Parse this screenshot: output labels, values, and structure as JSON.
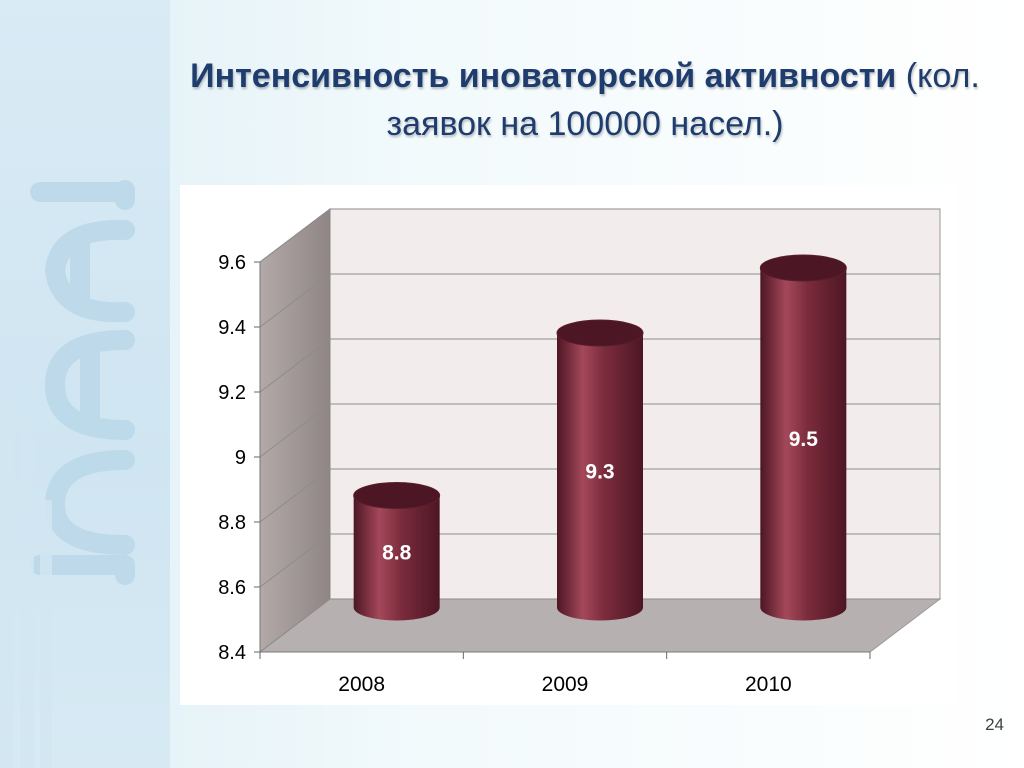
{
  "slide": {
    "title_bold": "Интенсивность иноваторской активности",
    "title_normal": "(кол. заявок на 100000 насел.)",
    "page_number": "24"
  },
  "logo": {
    "name": "decorative-logo-icon",
    "color": "#bcd9ea"
  },
  "chart_data": {
    "type": "bar",
    "style": "3d-cylinder",
    "categories": [
      "2008",
      "2009",
      "2010"
    ],
    "values": [
      8.8,
      9.3,
      9.5
    ],
    "data_labels": [
      "8.8",
      "9.3",
      "9.5"
    ],
    "y_ticks": [
      "8.4",
      "8.6",
      "8.8",
      "9",
      "9.2",
      "9.4",
      "9.6"
    ],
    "ylim": [
      8.4,
      9.6
    ],
    "grid": true,
    "legend": "none",
    "colors": {
      "bar": "#7b2c3c",
      "bar_light": "#a4485a",
      "bar_dark": "#4d1624",
      "wall": "#f2ecec",
      "side_wall": "#a89e9e",
      "floor": "#b7b0b0",
      "grid": "#8c8c8c"
    }
  }
}
